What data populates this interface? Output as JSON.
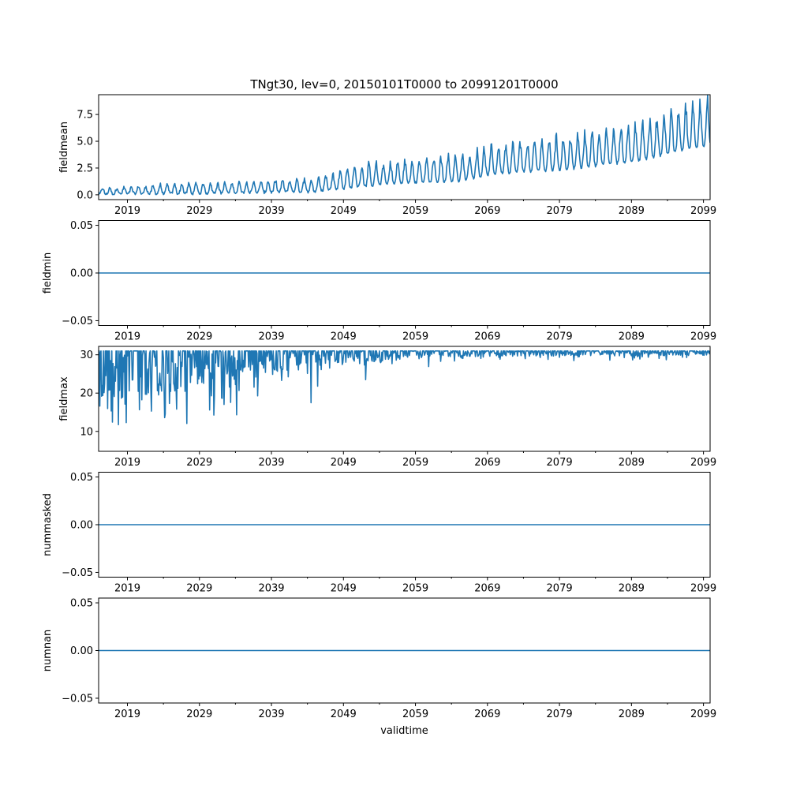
{
  "chart_data": {
    "type": "line",
    "title": "TNgt30, lev=0, 20150101T0000 to 20991201T0000",
    "xlabel": "validtime",
    "x_range": [
      2015.0,
      2099.92
    ],
    "x_ticks": [
      2019,
      2029,
      2039,
      2049,
      2059,
      2069,
      2079,
      2089,
      2099
    ],
    "x_tick_labels": [
      "2019",
      "2029",
      "2039",
      "2049",
      "2059",
      "2069",
      "2079",
      "2089",
      "2099"
    ],
    "x_minor_ticks": [
      2024,
      2034,
      2044,
      2054,
      2064,
      2074,
      2084,
      2094
    ],
    "line_color": "#1f77b4",
    "panels": [
      {
        "ylabel": "fieldmean",
        "ylim": [
          -0.45,
          9.35
        ],
        "yticks": [
          0.0,
          2.5,
          5.0,
          7.5
        ],
        "ytick_labels": [
          "0.0",
          "2.5",
          "5.0",
          "7.5"
        ],
        "series": [
          {
            "name": "fieldmean",
            "type": "annual-cycle",
            "years": [
              2015,
              2025,
              2035,
              2045,
              2049,
              2055,
              2065,
              2070,
              2080,
              2090,
              2095,
              2099
            ],
            "trough": [
              0.05,
              0.1,
              0.2,
              0.3,
              0.6,
              1.0,
              1.3,
              2.0,
              2.4,
              3.2,
              4.0,
              4.6
            ],
            "peak": [
              0.6,
              1.0,
              1.2,
              1.5,
              2.6,
              3.1,
              3.8,
              4.6,
              5.6,
              6.6,
              8.0,
              9.0
            ]
          }
        ]
      },
      {
        "ylabel": "fieldmin",
        "ylim": [
          -0.055,
          0.055
        ],
        "yticks": [
          -0.05,
          0.0,
          0.05
        ],
        "ytick_labels": [
          "−0.05",
          "0.00",
          "0.05"
        ],
        "series": [
          {
            "name": "fieldmin",
            "type": "constant",
            "value": 0.0
          }
        ]
      },
      {
        "ylabel": "fieldmax",
        "ylim": [
          4.8,
          32.2
        ],
        "yticks": [
          10,
          20,
          30
        ],
        "ytick_labels": [
          "10",
          "20",
          "30"
        ],
        "series": [
          {
            "name": "fieldmax",
            "type": "capped-noise",
            "cap": 31,
            "floor_min": 6,
            "years": [
              2015,
              2025,
              2035,
              2045,
              2050,
              2060,
              2066,
              2099
            ],
            "mean_drop": [
              14,
              9,
              6,
              5,
              3,
              1.5,
              1.2,
              1.0
            ],
            "spread": [
              10,
              8,
              7,
              7,
              3,
              2.5,
              1.0,
              1.0
            ]
          }
        ]
      },
      {
        "ylabel": "nummasked",
        "ylim": [
          -0.055,
          0.055
        ],
        "yticks": [
          -0.05,
          0.0,
          0.05
        ],
        "ytick_labels": [
          "−0.05",
          "0.00",
          "0.05"
        ],
        "series": [
          {
            "name": "nummasked",
            "type": "constant",
            "value": 0.0
          }
        ]
      },
      {
        "ylabel": "numnan",
        "ylim": [
          -0.055,
          0.055
        ],
        "yticks": [
          -0.05,
          0.0,
          0.05
        ],
        "ytick_labels": [
          "−0.05",
          "0.00",
          "0.05"
        ],
        "series": [
          {
            "name": "numnan",
            "type": "constant",
            "value": 0.0
          }
        ]
      }
    ]
  }
}
